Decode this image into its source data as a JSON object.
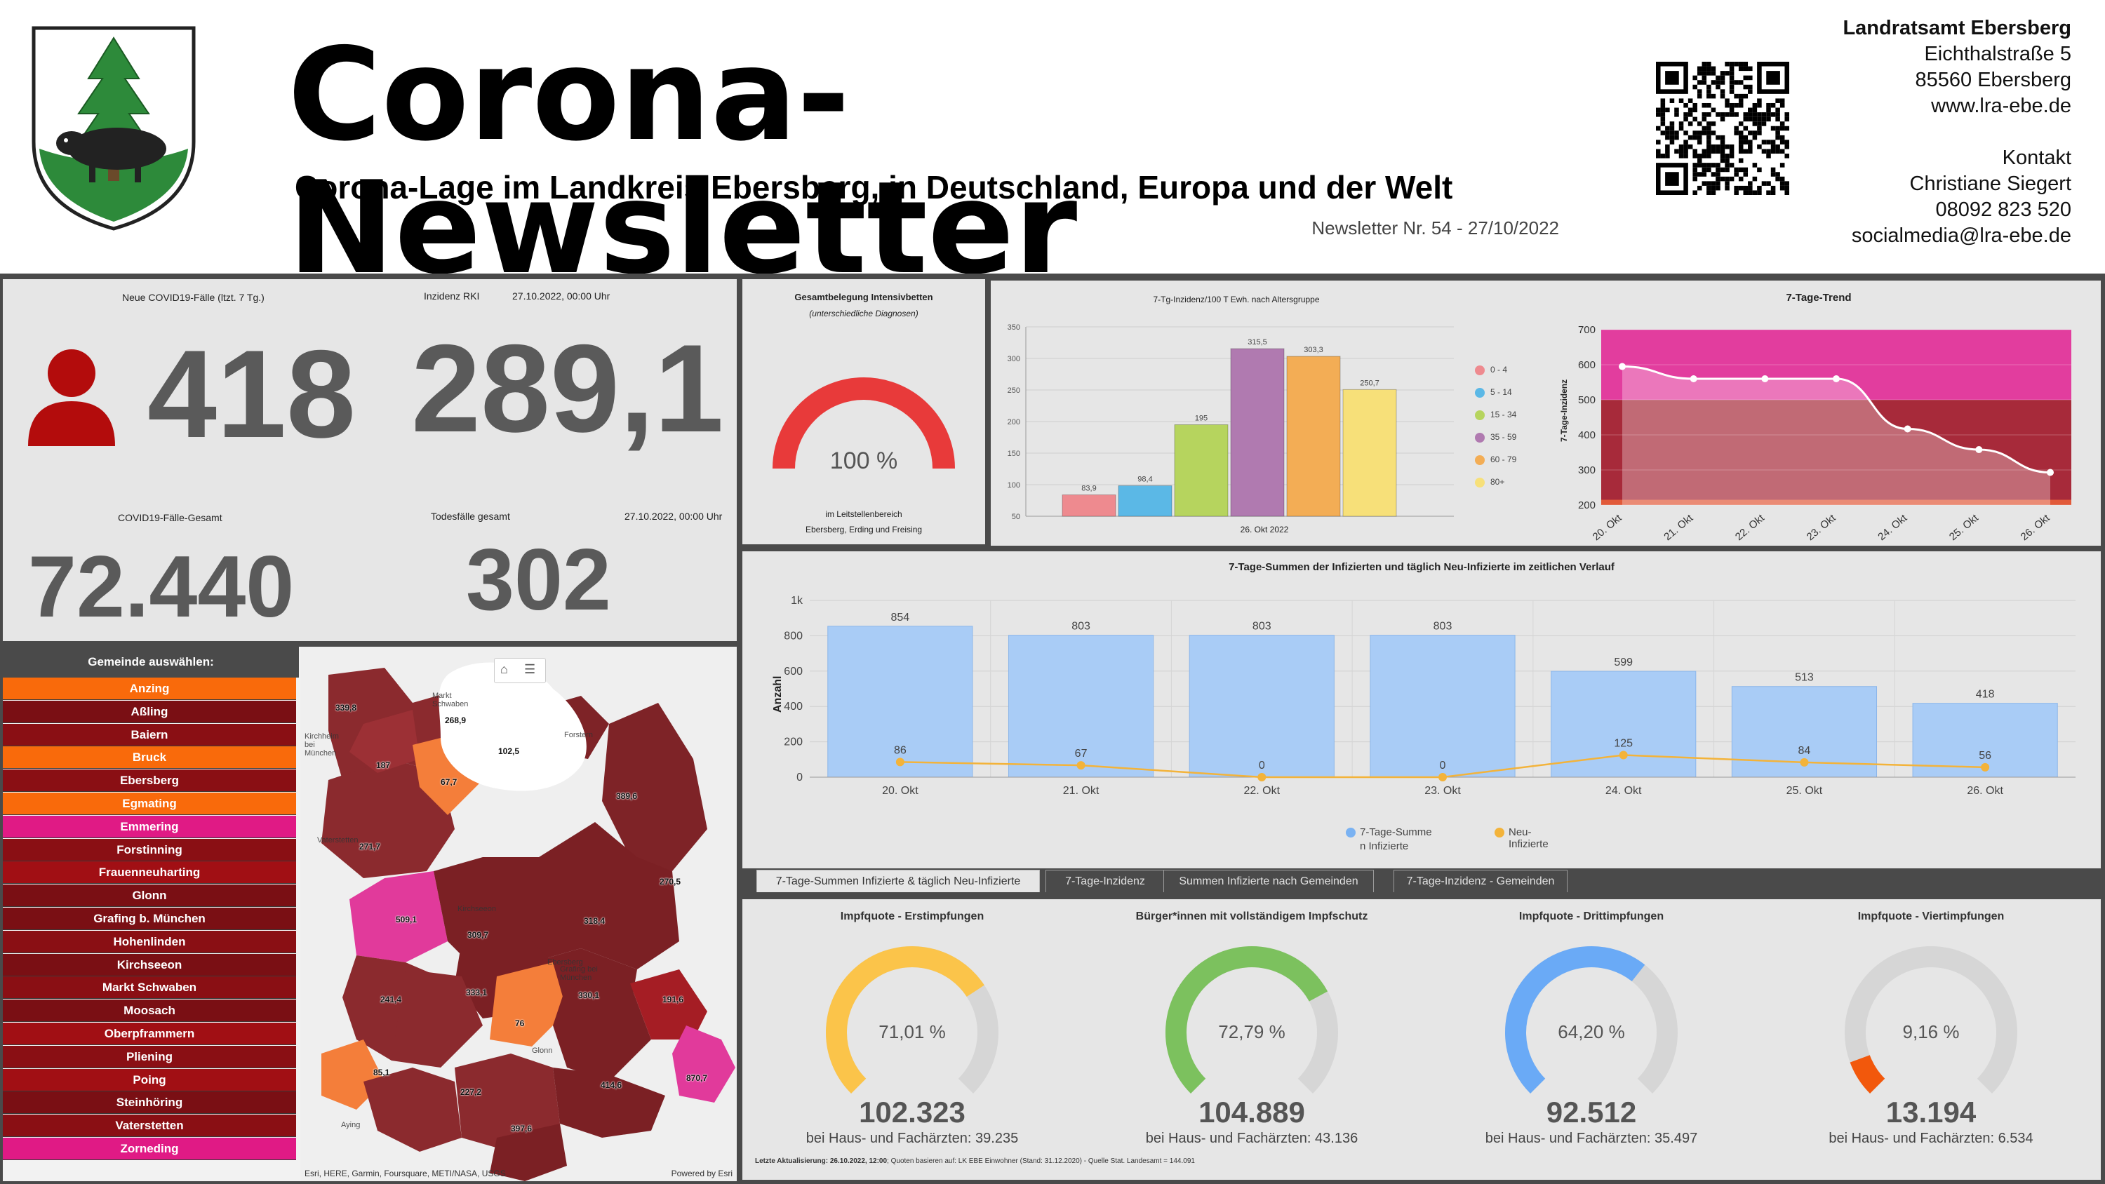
{
  "header": {
    "title": "Corona-Newsletter",
    "subtitle": "Corona-Lage im Landkreis Ebersberg, in Deutschland, Europa und der Welt",
    "issue": "Newsletter Nr. 54 - 27/10/2022",
    "org_name": "Landratsamt Ebersberg",
    "street": "Eichthalstraße 5",
    "city": "85560 Ebersberg",
    "web": "www.lra-ebe.de",
    "contact_label": "Kontakt",
    "contact_name": "Christiane Siegert",
    "phone": "08092 823 520",
    "email": "socialmedia@lra-ebe.de"
  },
  "kpis": {
    "new_cases_label": "Neue COVID19-Fälle (ltzt. 7 Tg.)",
    "new_cases_value": "418",
    "incidence_label": "Inzidenz RKI",
    "incidence_date": "27.10.2022, 00:00 Uhr",
    "incidence_value": "289,1",
    "total_cases_label": "COVID19-Fälle-Gesamt",
    "total_cases_value": "72.440",
    "deaths_label": "Todesfälle gesamt",
    "deaths_date": "27.10.2022, 00:00 Uhr",
    "deaths_value": "302"
  },
  "icu": {
    "title": "Gesamtbelegung Intensivbetten",
    "subtitle": "(unterschiedliche Diagnosen)",
    "value_label": "100 %",
    "value": 1.0,
    "note1": "im Leitstellenbereich",
    "note2": "Ebersberg, Erding und Freising",
    "color": "#e83a3a"
  },
  "map": {
    "panel_title": "Gemeinde auswählen:",
    "attribution": "Esri, HERE, Garmin, Foursquare, METI/NASA, USGS",
    "powered": "Powered by Esri",
    "home_icon": "home-icon",
    "list_icon": "list-icon",
    "place_labels": [
      "Kirchheim bei München",
      "Forstern",
      "Vaterstetten",
      "Kirchseeon",
      "Grafing bei München",
      "Ebersberg",
      "Aying",
      "Markt Schwaben",
      "Glonn"
    ],
    "values": [
      "339,8",
      "268,9",
      "102,5",
      "187",
      "67,7",
      "389,6",
      "271,7",
      "270,5",
      "509,1",
      "318,4",
      "309,7",
      "241,4",
      "333,1",
      "76",
      "330,1",
      "191,6",
      "85,1",
      "227,2",
      "414,6",
      "870,7",
      "397,6"
    ],
    "municipalities": [
      {
        "name": "Anzing",
        "color": "#f96a0b"
      },
      {
        "name": "Aßling",
        "color": "#7a0f14"
      },
      {
        "name": "Baiern",
        "color": "#8a0f14"
      },
      {
        "name": "Bruck",
        "color": "#f96a0b"
      },
      {
        "name": "Ebersberg",
        "color": "#8a0f14"
      },
      {
        "name": "Egmating",
        "color": "#f96a0b"
      },
      {
        "name": "Emmering",
        "color": "#e01a85"
      },
      {
        "name": "Forstinning",
        "color": "#8a0f14"
      },
      {
        "name": "Frauenneuharting",
        "color": "#a10f14"
      },
      {
        "name": "Glonn",
        "color": "#7a0f14"
      },
      {
        "name": "Grafing b. München",
        "color": "#7a0f14"
      },
      {
        "name": "Hohenlinden",
        "color": "#8a0f14"
      },
      {
        "name": "Kirchseeon",
        "color": "#7a0f14"
      },
      {
        "name": "Markt Schwaben",
        "color": "#8a0f14"
      },
      {
        "name": "Moosach",
        "color": "#7a0f14"
      },
      {
        "name": "Oberpframmern",
        "color": "#a10f14"
      },
      {
        "name": "Pliening",
        "color": "#8a0f14"
      },
      {
        "name": "Poing",
        "color": "#a10f14"
      },
      {
        "name": "Steinhöring",
        "color": "#7a0f14"
      },
      {
        "name": "Vaterstetten",
        "color": "#8a0f14"
      },
      {
        "name": "Zorneding",
        "color": "#e01a85"
      }
    ]
  },
  "age_chart": {
    "title": "7-Tg-Inzidenz/100 T Ewh. nach Altersgruppe",
    "xlabel": "26. Okt 2022",
    "chart_data": {
      "type": "bar",
      "categories": [
        "0 - 4",
        "5 - 14",
        "15 - 34",
        "35 - 59",
        "60 - 79",
        "80+"
      ],
      "values": [
        83.9,
        98.4,
        195,
        315.5,
        303.3,
        250.7
      ],
      "value_labels": [
        "83,9",
        "98,4",
        "195",
        "315,5",
        "303,3",
        "250,7"
      ],
      "colors": [
        "#ee8a8f",
        "#5bb8e6",
        "#b6d45e",
        "#b07ab0",
        "#f3ad55",
        "#f7e079"
      ],
      "ylim": [
        50,
        350
      ],
      "yticks": [
        "350",
        "300",
        "250",
        "200",
        "150",
        "100",
        "50"
      ]
    }
  },
  "trend_chart": {
    "title": "7-Tage-Trend",
    "ylabel": "7-Tage-Inzidenz",
    "chart_data": {
      "type": "line",
      "x": [
        "20. Okt",
        "21. Okt",
        "22. Okt",
        "23. Okt",
        "24. Okt",
        "25. Okt",
        "26. Okt"
      ],
      "values": [
        595,
        560,
        560,
        560,
        417,
        358,
        293
      ],
      "ylim": [
        200,
        700
      ],
      "yticks": [
        "700",
        "600",
        "500",
        "400",
        "300",
        "200"
      ]
    }
  },
  "sum_chart": {
    "title": "7-Tage-Summen der Infizierten und täglich Neu-Infizierte im zeitlichen Verlauf",
    "ylabel": "Anzahl",
    "legend_sum": "7-Tage-Summe",
    "legend_sum2": "n Infizierte",
    "legend_new": "Neu-Infizierte",
    "chart_data": {
      "type": "bar",
      "categories": [
        "20. Okt",
        "21. Okt",
        "22. Okt",
        "23. Okt",
        "24. Okt",
        "25. Okt",
        "26. Okt"
      ],
      "series": [
        {
          "name": "7-Tage-Summe n Infizierte",
          "values": [
            854,
            803,
            803,
            803,
            599,
            513,
            418
          ]
        },
        {
          "name": "Neu-Infizierte",
          "values": [
            86,
            67,
            0,
            0,
            125,
            84,
            56
          ]
        }
      ],
      "ylim": [
        0,
        1000
      ],
      "yticks": [
        "1k",
        "800",
        "600",
        "400",
        "200",
        "0"
      ],
      "bar_color": "#a9ccf6",
      "line_color": "#f3b33a"
    }
  },
  "tabs": [
    "7-Tage-Summen Infizierte & täglich Neu-Infizierte",
    "7-Tage-Inzidenz",
    "Summen Infizierte nach Gemeinden",
    "7-Tage-Inzidenz - Gemeinden"
  ],
  "vaccination": {
    "gauges": [
      {
        "title": "Impfquote  - Erstimpfungen",
        "pct_label": "71,01 %",
        "value": 0.7101,
        "count": "102.323",
        "doctors": "bei Haus- und Fachärzten: 39.235",
        "color": "#fbc44a"
      },
      {
        "title": "Bürger*innen mit vollständigem Impfschutz",
        "pct_label": "72,79 %",
        "value": 0.7279,
        "count": "104.889",
        "doctors": "bei Haus- und Fachärzten: 43.136",
        "color": "#7cc15e"
      },
      {
        "title": "Impfquote  - Drittimpfungen",
        "pct_label": "64,20 %",
        "value": 0.642,
        "count": "92.512",
        "doctors": "bei Haus- und Fachärzten: 35.497",
        "color": "#6aaaf6"
      },
      {
        "title": "Impfquote  - Viertimpfungen",
        "pct_label": "9,16 %",
        "value": 0.0916,
        "count": "13.194",
        "doctors": "bei Haus- und Fachärzten: 6.534",
        "color": "#f2580c"
      }
    ],
    "footnote_bold": "Letzte Aktualisierung: 26.10.2022, 12:00",
    "footnote": "; Quoten basieren auf: LK EBE Einwohner (Stand: 31.12.2020) - Quelle Stat. Landesamt = 144.091"
  }
}
